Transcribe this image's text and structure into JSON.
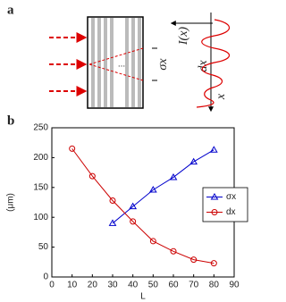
{
  "diagram": {
    "panel_label": "a",
    "intensity_label": "I(x)",
    "width_label": "σx",
    "spacing_label": "dx",
    "axis_label": "x",
    "ellipsis": "..."
  },
  "chart_data": {
    "type": "line",
    "panel_label": "b",
    "xlabel": "L",
    "ylabel": "(μm)",
    "xlim": [
      0,
      90
    ],
    "xticks": [
      0,
      10,
      20,
      30,
      40,
      50,
      60,
      70,
      80,
      90
    ],
    "ylim": [
      0,
      250
    ],
    "yticks": [
      0,
      50,
      100,
      150,
      200,
      250
    ],
    "legend": "right",
    "series": [
      {
        "name": "σx",
        "color": "#0000cc",
        "marker": "triangle",
        "x": [
          30,
          40,
          50,
          60,
          70,
          80
        ],
        "values": [
          90,
          118,
          146,
          167,
          193,
          213
        ]
      },
      {
        "name": "dx",
        "color": "#cc0000",
        "marker": "circle",
        "x": [
          10,
          20,
          30,
          40,
          50,
          60,
          70,
          80
        ],
        "values": [
          215,
          169,
          128,
          93,
          60,
          43,
          29,
          23
        ]
      }
    ]
  }
}
